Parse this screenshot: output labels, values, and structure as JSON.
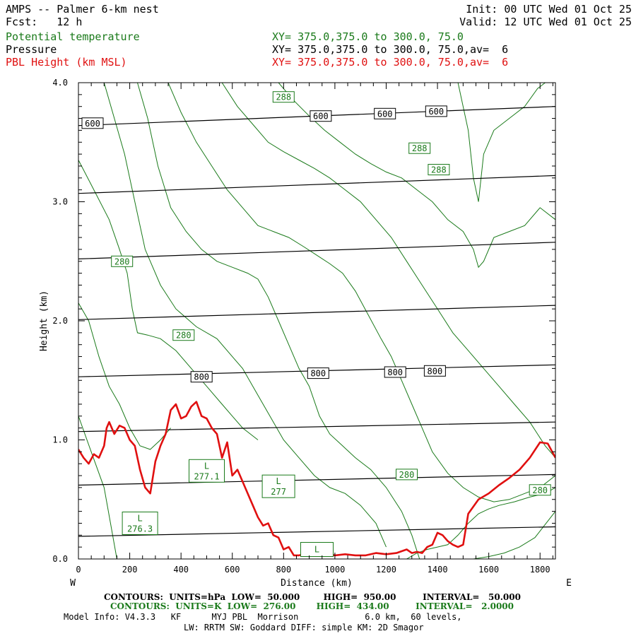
{
  "header": {
    "title": "AMPS -- Palmer 6-km nest",
    "fcst_label": "Fcst:",
    "fcst_value": "12 h",
    "init": "Init: 00 UTC Wed 01 Oct 25",
    "valid": "Valid: 12 UTC Wed 01 Oct 25",
    "field1_name": "Potential temperature",
    "field1_xy": "XY= 375.0,375.0 to 300.0, 75.0",
    "field2_name": "Pressure",
    "field2_xy": "XY= 375.0,375.0 to 300.0, 75.0,av=  6",
    "field3_name": "PBL Height (km MSL)",
    "field3_xy": "XY= 375.0,375.0 to 300.0, 75.0,av=  6"
  },
  "colors": {
    "theta": "#1a7a1a",
    "pressure": "#000000",
    "pbl": "#e01010"
  },
  "chart_data": {
    "type": "line",
    "title": "AMPS -- Palmer 6-km nest",
    "xlabel": "Distance (km)",
    "ylabel": "Height (km)",
    "xlim": [
      0,
      1860
    ],
    "ylim": [
      0,
      4.0
    ],
    "x_ticks": [
      "0",
      "200",
      "400",
      "600",
      "800",
      "1000",
      "1200",
      "1400",
      "1600",
      "1800"
    ],
    "x_tick_values": [
      0,
      200,
      400,
      600,
      800,
      1000,
      1200,
      1400,
      1600,
      1800
    ],
    "y_ticks": [
      "0.0",
      "1.0",
      "2.0",
      "3.0",
      "4.0"
    ],
    "y_tick_values": [
      0,
      1,
      2,
      3,
      4
    ],
    "left_end_label": "W",
    "right_end_label": "E",
    "pressure_contours": [
      {
        "level": 950,
        "x": [
          0,
          1860
        ],
        "y": [
          0.19,
          0.27
        ]
      },
      {
        "level": 900,
        "x": [
          0,
          1860
        ],
        "y": [
          0.62,
          0.71
        ]
      },
      {
        "level": 850,
        "x": [
          0,
          1860
        ],
        "y": [
          1.07,
          1.15
        ]
      },
      {
        "level": 800,
        "x": [
          0,
          1860
        ],
        "y": [
          1.53,
          1.63
        ]
      },
      {
        "level": 750,
        "x": [
          0,
          1860
        ],
        "y": [
          2.01,
          2.13
        ]
      },
      {
        "level": 700,
        "x": [
          0,
          1860
        ],
        "y": [
          2.52,
          2.66
        ]
      },
      {
        "level": 650,
        "x": [
          0,
          1860
        ],
        "y": [
          3.07,
          3.22
        ]
      },
      {
        "level": 600,
        "x": [
          0,
          1860
        ],
        "y": [
          3.64,
          3.8
        ]
      }
    ],
    "pressure_labels": [
      {
        "text": "600",
        "x": 55,
        "y": 3.66
      },
      {
        "text": "600",
        "x": 945,
        "y": 3.72
      },
      {
        "text": "600",
        "x": 1195,
        "y": 3.74
      },
      {
        "text": "600",
        "x": 1395,
        "y": 3.76
      },
      {
        "text": "800",
        "x": 480,
        "y": 1.53
      },
      {
        "text": "800",
        "x": 935,
        "y": 1.56
      },
      {
        "text": "800",
        "x": 1235,
        "y": 1.57
      },
      {
        "text": "800",
        "x": 1390,
        "y": 1.58
      }
    ],
    "theta_contours": [
      {
        "x": [
          0,
          50,
          100,
          125,
          150,
          180,
          200
        ],
        "y": [
          1.2,
          0.9,
          0.6,
          0.3,
          0.0,
          -0.1,
          -0.1
        ]
      },
      {
        "x": [
          0,
          40,
          80,
          120,
          160,
          200,
          240,
          280,
          320,
          360
        ],
        "y": [
          2.15,
          2.0,
          1.7,
          1.45,
          1.3,
          1.1,
          0.95,
          0.92,
          1.0,
          1.1
        ]
      },
      {
        "x": [
          0,
          60,
          120,
          160,
          190,
          210,
          230,
          270,
          320,
          380,
          440,
          500,
          560,
          600,
          640,
          700
        ],
        "y": [
          3.35,
          3.1,
          2.85,
          2.6,
          2.4,
          2.1,
          1.9,
          1.88,
          1.85,
          1.75,
          1.6,
          1.45,
          1.3,
          1.2,
          1.1,
          1.0
        ]
      },
      {
        "x": [
          100,
          140,
          180,
          220,
          260,
          320,
          380,
          460,
          540,
          600,
          640,
          680,
          720,
          760,
          800,
          860,
          920,
          980,
          1040,
          1100,
          1160,
          1200
        ],
        "y": [
          4.0,
          3.7,
          3.4,
          3.0,
          2.6,
          2.3,
          2.1,
          1.95,
          1.85,
          1.7,
          1.6,
          1.45,
          1.3,
          1.15,
          1.0,
          0.85,
          0.7,
          0.6,
          0.55,
          0.45,
          0.3,
          0.1
        ]
      },
      {
        "x": [
          230,
          270,
          310,
          360,
          420,
          480,
          540,
          600,
          660,
          700,
          740,
          780,
          820,
          860,
          900,
          940,
          980,
          1030,
          1080,
          1140,
          1200,
          1260,
          1300,
          1330
        ],
        "y": [
          4.0,
          3.7,
          3.3,
          2.95,
          2.75,
          2.6,
          2.5,
          2.45,
          2.4,
          2.35,
          2.2,
          2.0,
          1.8,
          1.6,
          1.45,
          1.2,
          1.05,
          0.95,
          0.85,
          0.75,
          0.6,
          0.4,
          0.2,
          0.0
        ]
      },
      {
        "x": [
          350,
          400,
          460,
          520,
          580,
          640,
          700,
          760,
          820,
          880,
          930,
          980,
          1030,
          1080,
          1130,
          1180,
          1220,
          1260,
          1300,
          1340,
          1380,
          1440,
          1500,
          1560,
          1620,
          1680,
          1740,
          1800,
          1860
        ],
        "y": [
          4.0,
          3.75,
          3.5,
          3.3,
          3.1,
          2.95,
          2.8,
          2.75,
          2.7,
          2.62,
          2.55,
          2.48,
          2.4,
          2.25,
          2.05,
          1.85,
          1.7,
          1.5,
          1.3,
          1.1,
          0.9,
          0.72,
          0.6,
          0.52,
          0.48,
          0.5,
          0.55,
          0.6,
          0.7
        ]
      },
      {
        "x": [
          560,
          620,
          680,
          740,
          800,
          860,
          920,
          980,
          1040,
          1100,
          1160,
          1220,
          1280,
          1340,
          1400,
          1460,
          1520,
          1580,
          1640,
          1700,
          1760,
          1820,
          1860
        ],
        "y": [
          4.0,
          3.8,
          3.65,
          3.5,
          3.42,
          3.35,
          3.28,
          3.2,
          3.1,
          3.0,
          2.85,
          2.7,
          2.5,
          2.3,
          2.1,
          1.9,
          1.75,
          1.6,
          1.45,
          1.3,
          1.15,
          0.95,
          0.85
        ]
      },
      {
        "x": [
          780,
          840,
          900,
          960,
          1020,
          1080,
          1140,
          1200,
          1260,
          1320,
          1380,
          1440,
          1500,
          1540,
          1560,
          1580,
          1620,
          1680,
          1740,
          1800,
          1860
        ],
        "y": [
          4.0,
          3.85,
          3.72,
          3.6,
          3.5,
          3.4,
          3.32,
          3.25,
          3.2,
          3.1,
          3.0,
          2.85,
          2.75,
          2.6,
          2.45,
          2.5,
          2.7,
          2.75,
          2.8,
          2.95,
          2.85
        ]
      },
      {
        "x": [
          1480,
          1520,
          1540,
          1560,
          1580,
          1620,
          1680,
          1740,
          1790,
          1820
        ],
        "y": [
          4.0,
          3.6,
          3.2,
          3.0,
          3.4,
          3.6,
          3.7,
          3.8,
          3.95,
          4.0
        ]
      },
      {
        "x": [
          1280,
          1320,
          1360,
          1400,
          1440,
          1480,
          1520,
          1560,
          1600,
          1640,
          1700,
          1760,
          1820,
          1860
        ],
        "y": [
          0.0,
          0.05,
          0.08,
          0.1,
          0.12,
          0.2,
          0.3,
          0.38,
          0.42,
          0.45,
          0.48,
          0.52,
          0.55,
          0.6
        ]
      },
      {
        "x": [
          1540,
          1600,
          1660,
          1720,
          1780,
          1860
        ],
        "y": [
          0.0,
          0.02,
          0.05,
          0.1,
          0.18,
          0.4
        ]
      }
    ],
    "theta_labels": [
      {
        "text": "288",
        "x": 800,
        "y": 3.88
      },
      {
        "text": "288",
        "x": 1330,
        "y": 3.45
      },
      {
        "text": "288",
        "x": 1405,
        "y": 3.27
      },
      {
        "text": "280",
        "x": 170,
        "y": 2.5
      },
      {
        "text": "280",
        "x": 410,
        "y": 1.88
      },
      {
        "text": "280",
        "x": 1280,
        "y": 0.71
      },
      {
        "text": "280",
        "x": 1800,
        "y": 0.58
      }
    ],
    "low_labels": [
      {
        "letter": "L",
        "value": "277.1",
        "x": 500,
        "y": 0.74
      },
      {
        "letter": "L",
        "value": "277",
        "x": 780,
        "y": 0.61
      },
      {
        "letter": "L",
        "value": "276.3",
        "x": 240,
        "y": 0.3
      },
      {
        "letter": "L",
        "value": "",
        "x": 930,
        "y": 0.08
      }
    ],
    "series": [
      {
        "name": "PBL Height (km MSL)",
        "x": [
          0,
          20,
          40,
          60,
          80,
          100,
          110,
          120,
          140,
          160,
          180,
          200,
          220,
          240,
          260,
          280,
          300,
          320,
          340,
          360,
          380,
          400,
          420,
          440,
          460,
          480,
          500,
          520,
          540,
          560,
          580,
          600,
          620,
          640,
          660,
          680,
          700,
          720,
          740,
          760,
          780,
          800,
          820,
          840,
          860,
          880,
          900,
          920,
          940,
          960,
          980,
          1000,
          1040,
          1080,
          1120,
          1160,
          1200,
          1240,
          1280,
          1300,
          1320,
          1340,
          1360,
          1380,
          1400,
          1420,
          1440,
          1460,
          1480,
          1500,
          1520,
          1560,
          1600,
          1640,
          1680,
          1720,
          1760,
          1800,
          1830,
          1860
        ],
        "y": [
          0.92,
          0.85,
          0.8,
          0.88,
          0.85,
          0.95,
          1.1,
          1.15,
          1.05,
          1.12,
          1.1,
          1.0,
          0.95,
          0.75,
          0.6,
          0.55,
          0.82,
          0.95,
          1.05,
          1.25,
          1.3,
          1.18,
          1.2,
          1.28,
          1.32,
          1.2,
          1.18,
          1.1,
          1.05,
          0.85,
          0.98,
          0.7,
          0.75,
          0.65,
          0.55,
          0.45,
          0.35,
          0.28,
          0.3,
          0.2,
          0.18,
          0.08,
          0.1,
          0.03,
          0.03,
          0.04,
          0.05,
          0.03,
          0.05,
          0.04,
          0.04,
          0.03,
          0.04,
          0.03,
          0.03,
          0.05,
          0.04,
          0.05,
          0.08,
          0.05,
          0.06,
          0.05,
          0.1,
          0.12,
          0.22,
          0.2,
          0.15,
          0.12,
          0.1,
          0.12,
          0.38,
          0.5,
          0.55,
          0.62,
          0.68,
          0.75,
          0.85,
          0.98,
          0.97,
          0.85
        ]
      }
    ]
  },
  "footer": {
    "line1": "CONTOURS:  UNITS=hPa  LOW=  50.000        HIGH=  950.00         INTERVAL=   50.000",
    "line2": "CONTOURS:  UNITS=K  LOW=  276.00       HIGH=  434.00         INTERVAL=   2.0000",
    "line3": "Model Info: V4.3.3   KF      MYJ PBL  Morrison             6.0 km,  60 levels,",
    "line4": "LW: RRTM SW: Goddard DIFF: simple KM: 2D Smagor"
  }
}
